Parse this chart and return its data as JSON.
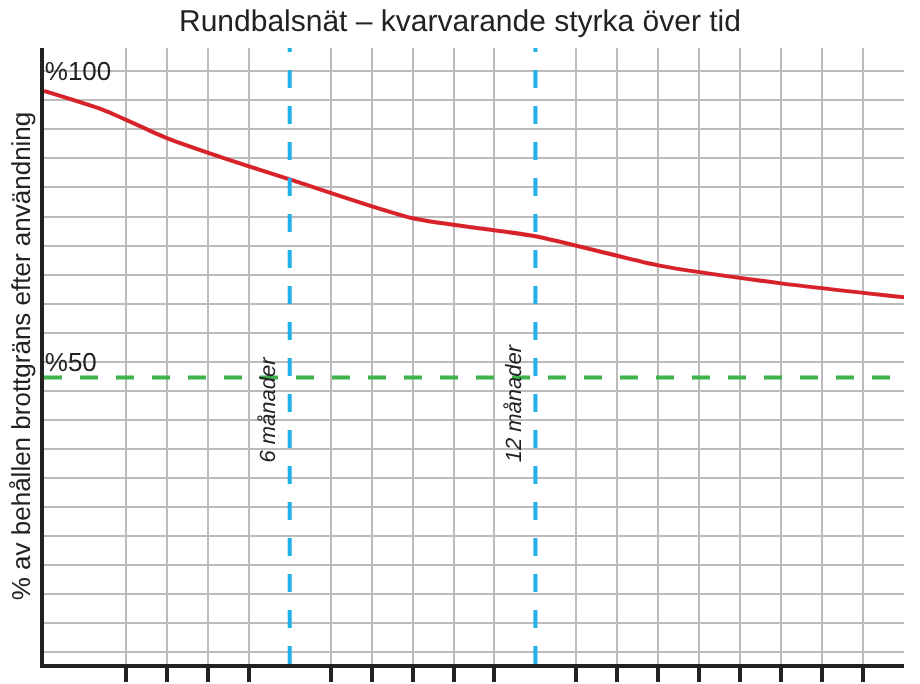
{
  "chart_data": {
    "type": "line",
    "title": "Rundbalsnät – kvarvarande styrka över tid",
    "ylabel": "% av behållen brottgräns efter användning",
    "x": [
      0,
      1.5,
      3,
      4.5,
      6,
      9,
      12,
      15,
      18,
      21
    ],
    "series": [
      {
        "color": "#d7222a",
        "values": [
          96.6,
          93.2,
          88.5,
          84.8,
          81.4,
          74.7,
          71.6,
          66.6,
          63.5,
          61.1
        ]
      }
    ],
    "xlim": [
      0,
      21
    ],
    "xticks": [
      {
        "value": 0,
        "label": null
      },
      {
        "value": 2,
        "label": null
      },
      {
        "value": 3,
        "label": null
      },
      {
        "value": 4,
        "label": null
      },
      {
        "value": 5,
        "label": null
      },
      {
        "value": 7,
        "label": null
      },
      {
        "value": 8,
        "label": null
      },
      {
        "value": 9,
        "label": null
      },
      {
        "value": 10,
        "label": null
      },
      {
        "value": 11,
        "label": null
      },
      {
        "value": 13,
        "label": null
      },
      {
        "value": 14,
        "label": null
      },
      {
        "value": 15,
        "label": null
      },
      {
        "value": 16,
        "label": null
      },
      {
        "value": 17,
        "label": null
      },
      {
        "value": 18,
        "label": null
      },
      {
        "value": 19,
        "label": null
      },
      {
        "value": 20,
        "label": null
      }
    ],
    "ylim": [
      -2,
      104
    ],
    "yticks": [
      {
        "value": 0,
        "label": null
      },
      {
        "value": 5,
        "label": null
      },
      {
        "value": 10,
        "label": null
      },
      {
        "value": 15,
        "label": null
      },
      {
        "value": 20,
        "label": null
      },
      {
        "value": 25,
        "label": null
      },
      {
        "value": 30,
        "label": null
      },
      {
        "value": 35,
        "label": null
      },
      {
        "value": 40,
        "label": null
      },
      {
        "value": 45,
        "label": null
      },
      {
        "value": 50,
        "label": "%50"
      },
      {
        "value": 55,
        "label": null
      },
      {
        "value": 60,
        "label": null
      },
      {
        "value": 65,
        "label": null
      },
      {
        "value": 70,
        "label": null
      },
      {
        "value": 75,
        "label": null
      },
      {
        "value": 80,
        "label": null
      },
      {
        "value": 85,
        "label": null
      },
      {
        "value": 90,
        "label": null
      },
      {
        "value": 95,
        "label": null
      },
      {
        "value": 100,
        "label": "%100"
      }
    ],
    "ref_lines": [
      {
        "axis": "x",
        "value": 6,
        "label": "6 månader",
        "color": "#1fb1e8",
        "line_style": "dashed"
      },
      {
        "axis": "x",
        "value": 12,
        "label": "12 månader",
        "color": "#1fb1e8",
        "line_style": "dashed"
      },
      {
        "axis": "y",
        "value": 47.3,
        "color": "#3cb44a",
        "line_style": "dashed"
      }
    ],
    "grid": true,
    "marker": "none",
    "line_style": "solid"
  }
}
